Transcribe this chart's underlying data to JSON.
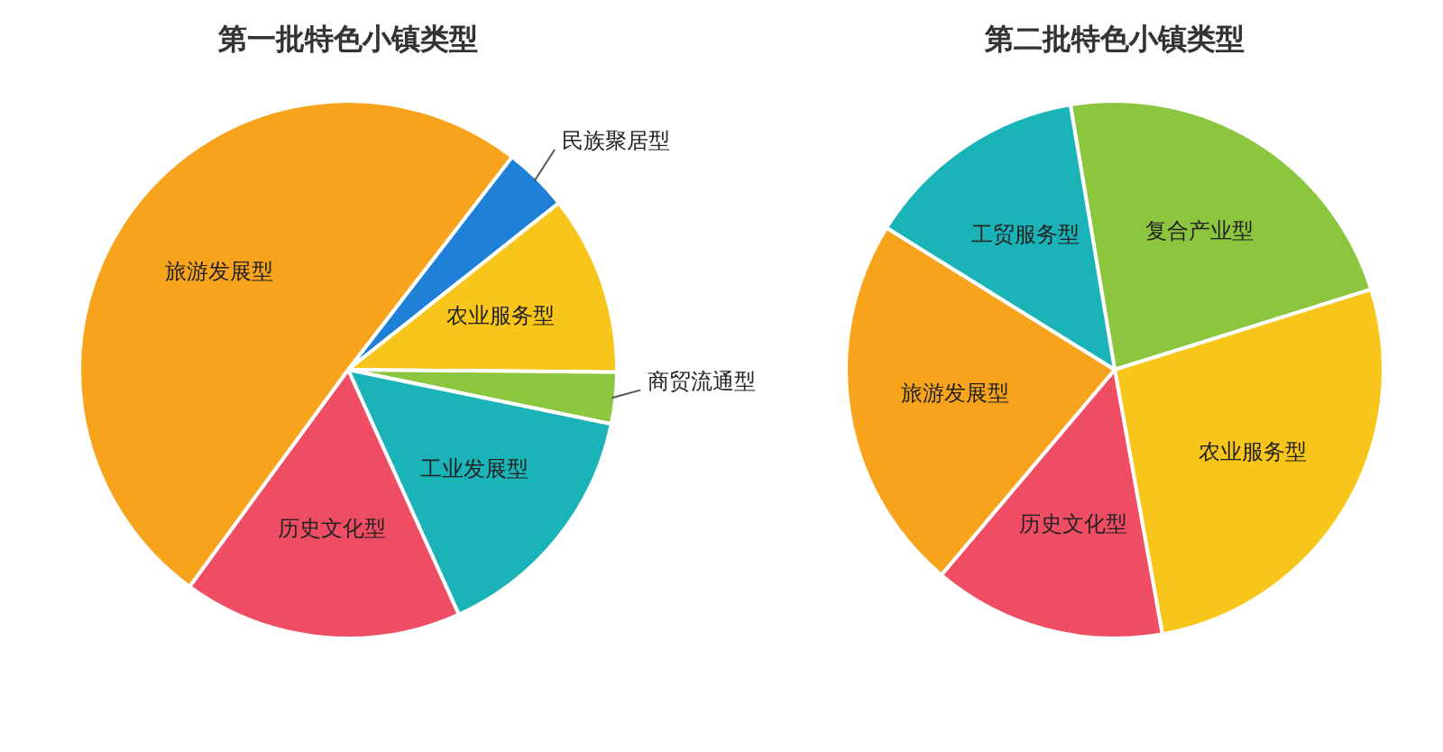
{
  "chart_data": [
    {
      "type": "pie",
      "title": "第一批特色小镇类型",
      "categories": [
        "民族聚居型",
        "农业服务型",
        "商贸流通型",
        "工业发展型",
        "历史文化型",
        "旅游发展型"
      ],
      "values": [
        3.9,
        10.8,
        3.1,
        15.0,
        16.8,
        50.4
      ],
      "colors": [
        "#1f80d8",
        "#f8c51a",
        "#8cc63f",
        "#1ab3b8",
        "#ef4d63",
        "#f8a31c"
      ]
    },
    {
      "type": "pie",
      "title": "第二批特色小镇类型",
      "categories": [
        "复合产业型",
        "农业服务型",
        "历史文化型",
        "旅游发展型",
        "工贸服务型"
      ],
      "values": [
        22.8,
        27.0,
        14.0,
        22.7,
        13.5
      ],
      "colors": [
        "#8cc63f",
        "#f8c51a",
        "#ef4d63",
        "#f8a31c",
        "#1ab3b8"
      ]
    }
  ]
}
